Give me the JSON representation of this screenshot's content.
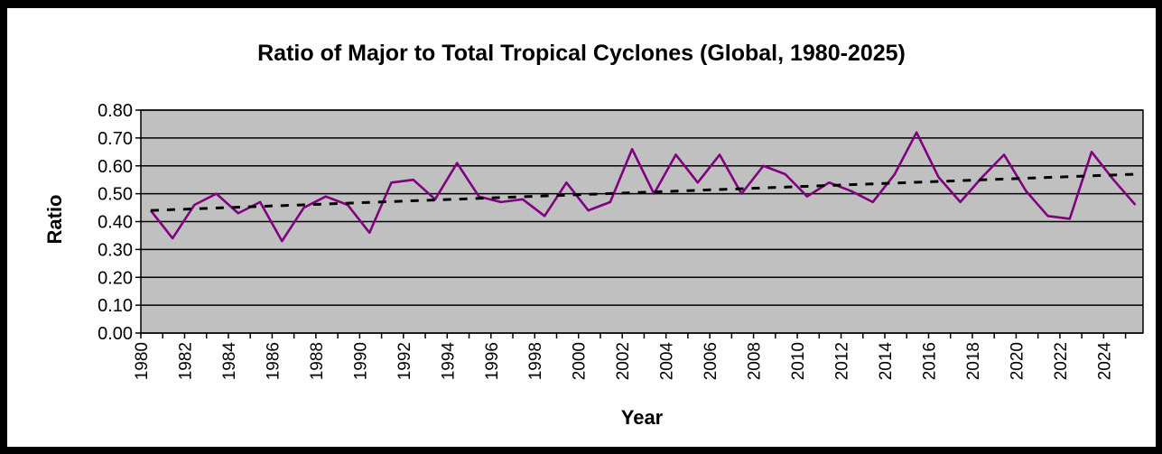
{
  "chart_data": {
    "type": "line",
    "title": "Ratio of Major to Total Tropical Cyclones (Global, 1980-2025)",
    "xlabel": "Year",
    "ylabel": "Ratio",
    "ylim": [
      0,
      0.8
    ],
    "y_ticks": [
      "0.00",
      "0.10",
      "0.20",
      "0.30",
      "0.40",
      "0.50",
      "0.60",
      "0.70",
      "0.80"
    ],
    "x_ticks": [
      "1980",
      "1982",
      "1984",
      "1986",
      "1988",
      "1990",
      "1992",
      "1994",
      "1996",
      "1998",
      "2000",
      "2002",
      "2004",
      "2006",
      "2008",
      "2010",
      "2012",
      "2014",
      "2016",
      "2018",
      "2020",
      "2022",
      "2024"
    ],
    "grid": true,
    "legend": "none",
    "plot_background": "#c0c0c0",
    "series": [
      {
        "style": "solid",
        "color": "#800080",
        "x": [
          1980,
          1981,
          1982,
          1983,
          1984,
          1985,
          1986,
          1987,
          1988,
          1989,
          1990,
          1991,
          1992,
          1993,
          1994,
          1995,
          1996,
          1997,
          1998,
          1999,
          2000,
          2001,
          2002,
          2003,
          2004,
          2005,
          2006,
          2007,
          2008,
          2009,
          2010,
          2011,
          2012,
          2013,
          2014,
          2015,
          2016,
          2017,
          2018,
          2019,
          2020,
          2021,
          2022,
          2023,
          2024,
          2025
        ],
        "values": [
          0.44,
          0.34,
          0.46,
          0.5,
          0.43,
          0.47,
          0.33,
          0.45,
          0.49,
          0.46,
          0.36,
          0.54,
          0.55,
          0.48,
          0.61,
          0.49,
          0.47,
          0.48,
          0.42,
          0.54,
          0.44,
          0.47,
          0.66,
          0.5,
          0.64,
          0.54,
          0.64,
          0.5,
          0.6,
          0.57,
          0.49,
          0.54,
          0.51,
          0.47,
          0.57,
          0.72,
          0.56,
          0.47,
          0.56,
          0.64,
          0.51,
          0.42,
          0.41,
          0.65,
          0.55,
          0.46
        ]
      },
      {
        "style": "dashed",
        "color": "#000000",
        "type": "linear-trend",
        "x": [
          1980,
          2025
        ],
        "values": [
          0.44,
          0.57
        ]
      }
    ]
  }
}
